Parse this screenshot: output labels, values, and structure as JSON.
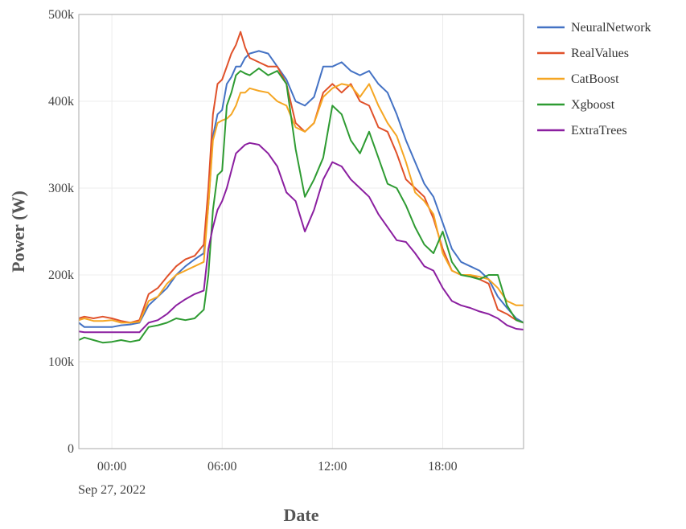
{
  "chart_data": {
    "type": "line",
    "title": "",
    "xlabel": "Date",
    "ylabel": "Power (W)",
    "x_hours": [
      -1.8,
      -1.5,
      -1,
      -0.5,
      0,
      0.5,
      1,
      1.5,
      2,
      2.5,
      3,
      3.5,
      4,
      4.5,
      5,
      5.25,
      5.5,
      5.75,
      6,
      6.25,
      6.5,
      6.75,
      7,
      7.25,
      7.5,
      8,
      8.5,
      9,
      9.5,
      10,
      10.5,
      11,
      11.5,
      12,
      12.5,
      13,
      13.5,
      14,
      14.5,
      15,
      15.5,
      16,
      16.5,
      17,
      17.5,
      18,
      18.5,
      19,
      19.5,
      20,
      20.5,
      21,
      21.5,
      22,
      22.4
    ],
    "xlim": [
      -1.8,
      22.4
    ],
    "ylim": [
      0,
      500000
    ],
    "x_ticks": [
      {
        "value": 0,
        "label": "00:00",
        "sublabel": "Sep 27, 2022"
      },
      {
        "value": 6,
        "label": "06:00",
        "sublabel": ""
      },
      {
        "value": 12,
        "label": "12:00",
        "sublabel": ""
      },
      {
        "value": 18,
        "label": "18:00",
        "sublabel": ""
      }
    ],
    "y_ticks": [
      {
        "value": 0,
        "label": "0"
      },
      {
        "value": 100000,
        "label": "100k"
      },
      {
        "value": 200000,
        "label": "200k"
      },
      {
        "value": 300000,
        "label": "300k"
      },
      {
        "value": 400000,
        "label": "400k"
      },
      {
        "value": 500000,
        "label": "500k"
      }
    ],
    "grid": true,
    "legend_position": "right",
    "series": [
      {
        "name": "NeuralNetwork",
        "color": "#4472C4",
        "values": [
          145000,
          140000,
          140000,
          140000,
          140000,
          142000,
          143000,
          145000,
          165000,
          175000,
          185000,
          200000,
          210000,
          218000,
          225000,
          280000,
          360000,
          385000,
          390000,
          420000,
          428000,
          440000,
          440000,
          450000,
          455000,
          458000,
          455000,
          440000,
          425000,
          400000,
          395000,
          405000,
          440000,
          440000,
          445000,
          435000,
          430000,
          435000,
          420000,
          410000,
          385000,
          355000,
          330000,
          305000,
          290000,
          260000,
          230000,
          215000,
          210000,
          205000,
          195000,
          175000,
          162000,
          150000,
          145000
        ]
      },
      {
        "name": "RealValues",
        "color": "#E0512A",
        "values": [
          150000,
          152000,
          150000,
          152000,
          150000,
          147000,
          145000,
          148000,
          178000,
          185000,
          198000,
          210000,
          218000,
          222000,
          235000,
          300000,
          385000,
          420000,
          425000,
          440000,
          455000,
          465000,
          480000,
          462000,
          450000,
          445000,
          440000,
          440000,
          420000,
          375000,
          365000,
          375000,
          410000,
          420000,
          410000,
          420000,
          400000,
          395000,
          370000,
          365000,
          340000,
          310000,
          300000,
          290000,
          265000,
          230000,
          205000,
          200000,
          200000,
          195000,
          190000,
          160000,
          155000,
          148000,
          145000
        ]
      },
      {
        "name": "CatBoost",
        "color": "#F5A623",
        "values": [
          148000,
          150000,
          147000,
          147000,
          148000,
          145000,
          145000,
          146000,
          170000,
          175000,
          190000,
          200000,
          205000,
          210000,
          215000,
          280000,
          355000,
          375000,
          378000,
          380000,
          385000,
          395000,
          410000,
          410000,
          415000,
          412000,
          410000,
          400000,
          395000,
          370000,
          365000,
          375000,
          405000,
          415000,
          420000,
          418000,
          405000,
          420000,
          395000,
          375000,
          360000,
          330000,
          295000,
          285000,
          270000,
          225000,
          205000,
          200000,
          200000,
          198000,
          195000,
          185000,
          170000,
          165000,
          165000
        ]
      },
      {
        "name": "Xgboost",
        "color": "#2E9B32",
        "values": [
          125000,
          128000,
          125000,
          122000,
          123000,
          125000,
          123000,
          125000,
          140000,
          142000,
          145000,
          150000,
          148000,
          150000,
          160000,
          200000,
          275000,
          315000,
          320000,
          395000,
          410000,
          430000,
          435000,
          432000,
          430000,
          438000,
          430000,
          435000,
          420000,
          345000,
          290000,
          310000,
          335000,
          395000,
          385000,
          355000,
          340000,
          365000,
          335000,
          305000,
          300000,
          280000,
          255000,
          235000,
          225000,
          250000,
          215000,
          200000,
          198000,
          195000,
          200000,
          200000,
          165000,
          148000,
          145000
        ]
      },
      {
        "name": "ExtraTrees",
        "color": "#8B1FA0",
        "values": [
          135000,
          134000,
          134000,
          134000,
          134000,
          134000,
          134000,
          134000,
          145000,
          148000,
          155000,
          165000,
          172000,
          178000,
          182000,
          230000,
          255000,
          275000,
          285000,
          300000,
          320000,
          340000,
          345000,
          350000,
          352000,
          350000,
          340000,
          325000,
          295000,
          285000,
          250000,
          275000,
          310000,
          330000,
          325000,
          310000,
          300000,
          290000,
          270000,
          255000,
          240000,
          238000,
          225000,
          210000,
          205000,
          185000,
          170000,
          165000,
          162000,
          158000,
          155000,
          150000,
          142000,
          138000,
          137000
        ]
      }
    ]
  }
}
